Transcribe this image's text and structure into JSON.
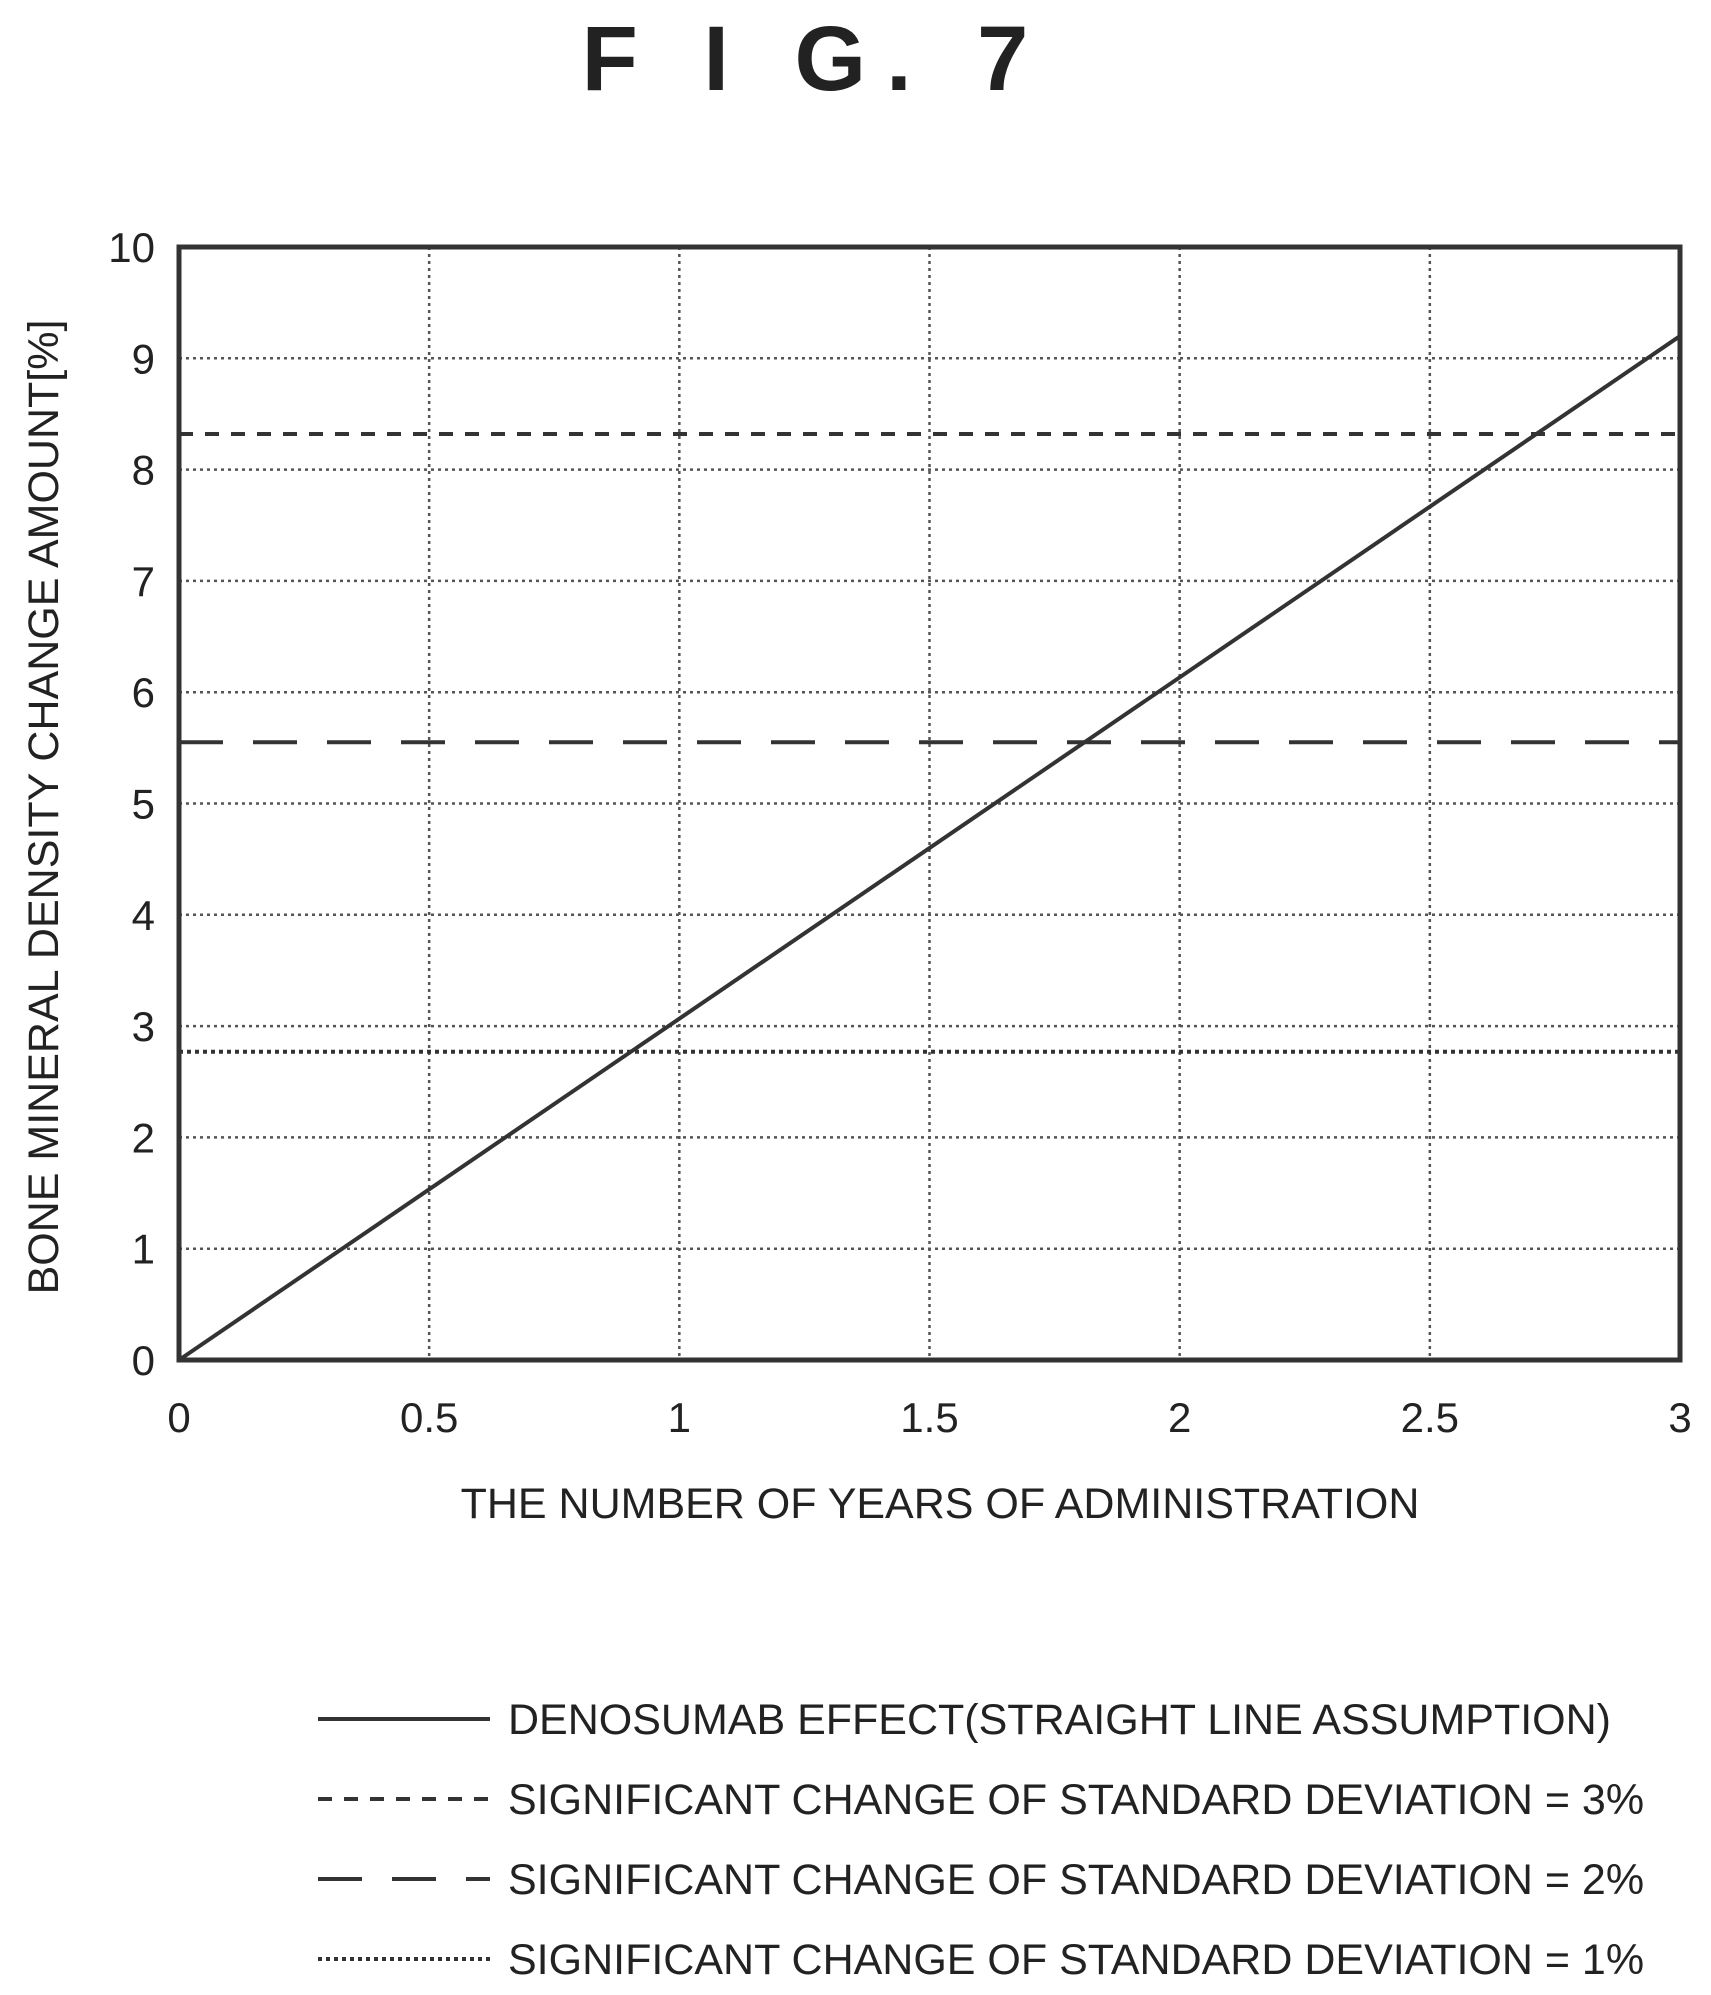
{
  "figure": {
    "title": "F I G.  7"
  },
  "chart_data": {
    "type": "line",
    "xlabel": "THE NUMBER OF YEARS OF ADMINISTRATION",
    "ylabel": "BONE MINERAL DENSITY CHANGE AMOUNT[%]",
    "xlim": [
      0,
      3
    ],
    "ylim": [
      0,
      10
    ],
    "xticks": [
      "0",
      "0.5",
      "1",
      "1.5",
      "2",
      "2.5",
      "3"
    ],
    "yticks": [
      "0",
      "1",
      "2",
      "3",
      "4",
      "5",
      "6",
      "7",
      "8",
      "9",
      "10"
    ],
    "grid": true,
    "legend_position": "bottom",
    "series": [
      {
        "name": "DENOSUMAB EFFECT(STRAIGHT LINE ASSUMPTION)",
        "style": "solid",
        "x": [
          0,
          3
        ],
        "y": [
          0,
          9.2
        ]
      },
      {
        "name": "SIGNIFICANT CHANGE OF STANDARD DEVIATION = 3%",
        "style": "dashed-short",
        "x": [
          0,
          3
        ],
        "y": [
          8.32,
          8.32
        ]
      },
      {
        "name": "SIGNIFICANT CHANGE OF STANDARD DEVIATION = 2%",
        "style": "dashed-long",
        "x": [
          0,
          3
        ],
        "y": [
          5.55,
          5.55
        ]
      },
      {
        "name": "SIGNIFICANT CHANGE OF STANDARD DEVIATION = 1%",
        "style": "dotted",
        "x": [
          0,
          3
        ],
        "y": [
          2.77,
          2.77
        ]
      }
    ]
  }
}
